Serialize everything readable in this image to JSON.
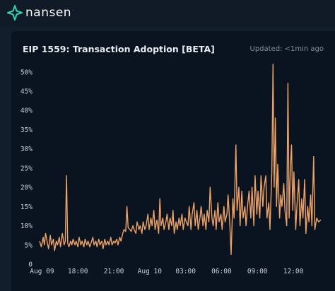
{
  "header": {
    "brand": "nansen"
  },
  "card": {
    "title": "EIP 1559: Transaction Adoption [BETA]",
    "updated": "Updated: <1min ago"
  },
  "colors": {
    "line": "#f0a464",
    "background": "#0a1421",
    "brand": "#2fd4b4"
  },
  "chart_data": {
    "type": "line",
    "title": "EIP 1559: Transaction Adoption [BETA]",
    "xlabel": "",
    "ylabel": "",
    "ylim": [
      0,
      0.54
    ],
    "y_ticks": [
      {
        "value": 0,
        "label": "0"
      },
      {
        "value": 0.05,
        "label": "5%"
      },
      {
        "value": 0.1,
        "label": "10%"
      },
      {
        "value": 0.15,
        "label": "15%"
      },
      {
        "value": 0.2,
        "label": "20%"
      },
      {
        "value": 0.25,
        "label": "25%"
      },
      {
        "value": 0.3,
        "label": "30%"
      },
      {
        "value": 0.35,
        "label": "35%"
      },
      {
        "value": 0.4,
        "label": "40%"
      },
      {
        "value": 0.45,
        "label": "45%"
      },
      {
        "value": 0.5,
        "label": "50%"
      }
    ],
    "x_ticks": [
      {
        "hour": 15.0,
        "label": "Aug 09"
      },
      {
        "hour": 18.0,
        "label": "18:00"
      },
      {
        "hour": 21.0,
        "label": "21:00"
      },
      {
        "hour": 24.0,
        "label": "Aug 10"
      },
      {
        "hour": 27.0,
        "label": "03:00"
      },
      {
        "hour": 30.0,
        "label": "06:00"
      },
      {
        "hour": 33.0,
        "label": "09:00"
      },
      {
        "hour": 36.0,
        "label": "12:00"
      }
    ],
    "xlim": [
      14.8,
      38.3
    ],
    "grid": false,
    "series": [
      {
        "points": [
          [
            14.8,
            0.06
          ],
          [
            14.95,
            0.045
          ],
          [
            15.1,
            0.07
          ],
          [
            15.2,
            0.05
          ],
          [
            15.3,
            0.08
          ],
          [
            15.45,
            0.055
          ],
          [
            15.55,
            0.04
          ],
          [
            15.7,
            0.075
          ],
          [
            15.8,
            0.05
          ],
          [
            15.95,
            0.065
          ],
          [
            16.05,
            0.035
          ],
          [
            16.2,
            0.06
          ],
          [
            16.3,
            0.05
          ],
          [
            16.45,
            0.07
          ],
          [
            16.55,
            0.045
          ],
          [
            16.7,
            0.08
          ],
          [
            16.85,
            0.05
          ],
          [
            16.95,
            0.06
          ],
          [
            17.05,
            0.23
          ],
          [
            17.15,
            0.055
          ],
          [
            17.25,
            0.045
          ],
          [
            17.4,
            0.06
          ],
          [
            17.5,
            0.05
          ],
          [
            17.6,
            0.065
          ],
          [
            17.75,
            0.05
          ],
          [
            17.85,
            0.06
          ],
          [
            18.0,
            0.045
          ],
          [
            18.1,
            0.07
          ],
          [
            18.25,
            0.05
          ],
          [
            18.35,
            0.06
          ],
          [
            18.5,
            0.045
          ],
          [
            18.6,
            0.065
          ],
          [
            18.75,
            0.05
          ],
          [
            18.85,
            0.06
          ],
          [
            19.0,
            0.045
          ],
          [
            19.1,
            0.055
          ],
          [
            19.25,
            0.07
          ],
          [
            19.35,
            0.05
          ],
          [
            19.5,
            0.06
          ],
          [
            19.6,
            0.045
          ],
          [
            19.75,
            0.065
          ],
          [
            19.85,
            0.05
          ],
          [
            20.0,
            0.06
          ],
          [
            20.1,
            0.04
          ],
          [
            20.25,
            0.065
          ],
          [
            20.35,
            0.05
          ],
          [
            20.5,
            0.06
          ],
          [
            20.6,
            0.05
          ],
          [
            20.75,
            0.07
          ],
          [
            20.85,
            0.05
          ],
          [
            21.0,
            0.06
          ],
          [
            21.1,
            0.055
          ],
          [
            21.25,
            0.065
          ],
          [
            21.35,
            0.05
          ],
          [
            21.5,
            0.07
          ],
          [
            21.6,
            0.06
          ],
          [
            21.75,
            0.08
          ],
          [
            21.85,
            0.09
          ],
          [
            22.0,
            0.085
          ],
          [
            22.1,
            0.15
          ],
          [
            22.2,
            0.095
          ],
          [
            22.35,
            0.09
          ],
          [
            22.45,
            0.085
          ],
          [
            22.6,
            0.1
          ],
          [
            22.7,
            0.09
          ],
          [
            22.85,
            0.08
          ],
          [
            22.95,
            0.11
          ],
          [
            23.1,
            0.09
          ],
          [
            23.2,
            0.1
          ],
          [
            23.35,
            0.08
          ],
          [
            23.45,
            0.11
          ],
          [
            23.6,
            0.09
          ],
          [
            23.7,
            0.1
          ],
          [
            23.85,
            0.13
          ],
          [
            23.95,
            0.09
          ],
          [
            24.1,
            0.12
          ],
          [
            24.2,
            0.1
          ],
          [
            24.35,
            0.14
          ],
          [
            24.45,
            0.09
          ],
          [
            24.6,
            0.115
          ],
          [
            24.75,
            0.08
          ],
          [
            24.85,
            0.17
          ],
          [
            24.95,
            0.1
          ],
          [
            25.1,
            0.12
          ],
          [
            25.2,
            0.09
          ],
          [
            25.35,
            0.11
          ],
          [
            25.45,
            0.13
          ],
          [
            25.6,
            0.09
          ],
          [
            25.7,
            0.12
          ],
          [
            25.85,
            0.1
          ],
          [
            25.95,
            0.14
          ],
          [
            26.05,
            0.08
          ],
          [
            26.2,
            0.11
          ],
          [
            26.3,
            0.09
          ],
          [
            26.45,
            0.12
          ],
          [
            26.55,
            0.1
          ],
          [
            26.7,
            0.13
          ],
          [
            26.8,
            0.09
          ],
          [
            26.95,
            0.12
          ],
          [
            27.05,
            0.11
          ],
          [
            27.2,
            0.1
          ],
          [
            27.3,
            0.15
          ],
          [
            27.45,
            0.09
          ],
          [
            27.55,
            0.13
          ],
          [
            27.7,
            0.16
          ],
          [
            27.8,
            0.1
          ],
          [
            27.95,
            0.14
          ],
          [
            28.05,
            0.09
          ],
          [
            28.2,
            0.12
          ],
          [
            28.3,
            0.15
          ],
          [
            28.45,
            0.1
          ],
          [
            28.55,
            0.13
          ],
          [
            28.7,
            0.09
          ],
          [
            28.8,
            0.14
          ],
          [
            28.95,
            0.11
          ],
          [
            29.05,
            0.2
          ],
          [
            29.2,
            0.12
          ],
          [
            29.3,
            0.1
          ],
          [
            29.45,
            0.14
          ],
          [
            29.55,
            0.09
          ],
          [
            29.7,
            0.16
          ],
          [
            29.8,
            0.11
          ],
          [
            29.95,
            0.13
          ],
          [
            30.05,
            0.09
          ],
          [
            30.2,
            0.15
          ],
          [
            30.3,
            0.11
          ],
          [
            30.45,
            0.13
          ],
          [
            30.55,
            0.18
          ],
          [
            30.7,
            0.1
          ],
          [
            30.8,
            0.025
          ],
          [
            30.95,
            0.17
          ],
          [
            31.05,
            0.12
          ],
          [
            31.2,
            0.31
          ],
          [
            31.3,
            0.14
          ],
          [
            31.45,
            0.2
          ],
          [
            31.55,
            0.1
          ],
          [
            31.7,
            0.19
          ],
          [
            31.8,
            0.12
          ],
          [
            31.95,
            0.15
          ],
          [
            32.05,
            0.1
          ],
          [
            32.2,
            0.16
          ],
          [
            32.3,
            0.19
          ],
          [
            32.45,
            0.12
          ],
          [
            32.55,
            0.2
          ],
          [
            32.7,
            0.1
          ],
          [
            32.8,
            0.23
          ],
          [
            32.95,
            0.13
          ],
          [
            33.05,
            0.19
          ],
          [
            33.2,
            0.12
          ],
          [
            33.3,
            0.23
          ],
          [
            33.45,
            0.15
          ],
          [
            33.55,
            0.2
          ],
          [
            33.7,
            0.23
          ],
          [
            33.8,
            0.12
          ],
          [
            33.95,
            0.16
          ],
          [
            34.05,
            0.09
          ],
          [
            34.2,
            0.24
          ],
          [
            34.3,
            0.52
          ],
          [
            34.4,
            0.2
          ],
          [
            34.5,
            0.38
          ],
          [
            34.6,
            0.15
          ],
          [
            34.7,
            0.26
          ],
          [
            34.85,
            0.12
          ],
          [
            34.95,
            0.18
          ],
          [
            35.05,
            0.15
          ],
          [
            35.2,
            0.21
          ],
          [
            35.3,
            0.14
          ],
          [
            35.45,
            0.1
          ],
          [
            35.55,
            0.47
          ],
          [
            35.65,
            0.12
          ],
          [
            35.75,
            0.25
          ],
          [
            35.85,
            0.31
          ],
          [
            35.95,
            0.14
          ],
          [
            36.05,
            0.24
          ],
          [
            36.2,
            0.09
          ],
          [
            36.3,
            0.15
          ],
          [
            36.45,
            0.22
          ],
          [
            36.55,
            0.1
          ],
          [
            36.7,
            0.17
          ],
          [
            36.8,
            0.12
          ],
          [
            36.95,
            0.22
          ],
          [
            37.05,
            0.08
          ],
          [
            37.2,
            0.15
          ],
          [
            37.3,
            0.11
          ],
          [
            37.45,
            0.18
          ],
          [
            37.55,
            0.1
          ],
          [
            37.7,
            0.28
          ],
          [
            37.8,
            0.09
          ],
          [
            37.95,
            0.12
          ],
          [
            38.1,
            0.11
          ],
          [
            38.3,
            0.115
          ]
        ]
      }
    ]
  }
}
